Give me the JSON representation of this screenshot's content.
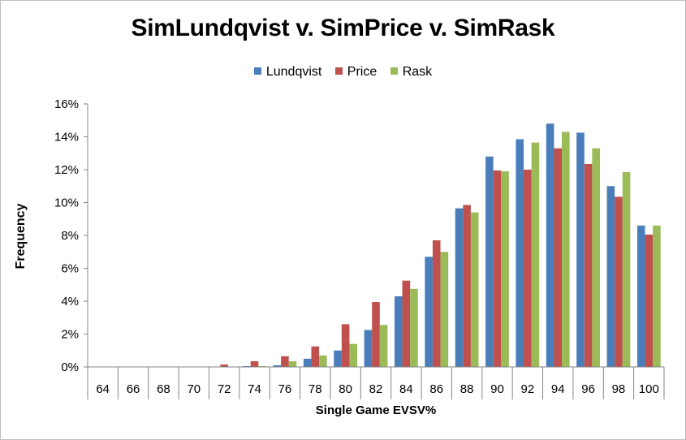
{
  "chart_data": {
    "type": "bar",
    "title": "SimLundqvist v. SimPrice v. SimRask",
    "xlabel": "Single Game EVSV%",
    "ylabel": "Frequency",
    "ylim": [
      0,
      16
    ],
    "y_ticks": [
      "0%",
      "2%",
      "4%",
      "6%",
      "8%",
      "10%",
      "12%",
      "14%",
      "16%"
    ],
    "legend_position": "top-center",
    "categories": [
      "64",
      "66",
      "68",
      "70",
      "72",
      "74",
      "76",
      "78",
      "80",
      "82",
      "84",
      "86",
      "88",
      "90",
      "92",
      "94",
      "96",
      "98",
      "100"
    ],
    "series": [
      {
        "name": "Lundqvist",
        "color": "#4a7ebb",
        "values": [
          0,
          0,
          0,
          0,
          0,
          0.05,
          0.1,
          0.5,
          1.0,
          2.25,
          4.3,
          6.7,
          9.65,
          12.8,
          13.85,
          14.8,
          14.25,
          11.0,
          8.6
        ]
      },
      {
        "name": "Price",
        "color": "#c0504d",
        "values": [
          0,
          0,
          0,
          0,
          0.15,
          0.35,
          0.65,
          1.25,
          2.6,
          3.95,
          5.25,
          7.7,
          9.85,
          11.95,
          12.0,
          13.3,
          12.35,
          10.35,
          8.05
        ]
      },
      {
        "name": "Rask",
        "color": "#9bbb59",
        "values": [
          0,
          0,
          0,
          0,
          0,
          0.05,
          0.35,
          0.7,
          1.4,
          2.55,
          4.75,
          7.0,
          9.4,
          11.9,
          13.65,
          14.3,
          13.3,
          11.85,
          8.6
        ]
      }
    ]
  }
}
